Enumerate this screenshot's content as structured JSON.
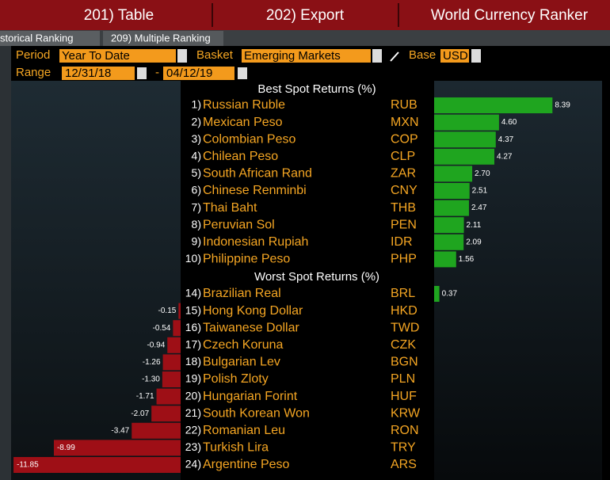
{
  "tabs": [
    "201) Table",
    "202) Export",
    "World Currency Ranker"
  ],
  "subtabs": [
    "storical Ranking",
    "209) Multiple Ranking"
  ],
  "controls": {
    "period_label": "Period",
    "period": "Year To Date",
    "basket_label": "Basket",
    "basket": "Emerging Markets",
    "base_label": "Base",
    "base": "USD",
    "range_label": "Range",
    "range_start": "12/31/18",
    "range_sep": "-",
    "range_end": "04/12/19"
  },
  "best": {
    "title": "Best Spot Returns (%)",
    "rows": [
      {
        "rank": "1)",
        "name": "Russian Ruble",
        "code": "RUB",
        "value": 8.39
      },
      {
        "rank": "2)",
        "name": "Mexican Peso",
        "code": "MXN",
        "value": 4.6,
        "label": "4.60"
      },
      {
        "rank": "3)",
        "name": "Colombian Peso",
        "code": "COP",
        "value": 4.37
      },
      {
        "rank": "4)",
        "name": "Chilean Peso",
        "code": "CLP",
        "value": 4.27
      },
      {
        "rank": "5)",
        "name": "South African Rand",
        "code": "ZAR",
        "value": 2.7,
        "label": "2.70"
      },
      {
        "rank": "6)",
        "name": "Chinese Renminbi",
        "code": "CNY",
        "value": 2.51
      },
      {
        "rank": "7)",
        "name": "Thai Baht",
        "code": "THB",
        "value": 2.47
      },
      {
        "rank": "8)",
        "name": "Peruvian Sol",
        "code": "PEN",
        "value": 2.11
      },
      {
        "rank": "9)",
        "name": "Indonesian Rupiah",
        "code": "IDR",
        "value": 2.09
      },
      {
        "rank": "10)",
        "name": "Philippine Peso",
        "code": "PHP",
        "value": 1.56
      }
    ]
  },
  "worst": {
    "title": "Worst Spot Returns (%)",
    "rows": [
      {
        "rank": "14)",
        "name": "Brazilian Real",
        "code": "BRL",
        "value": 0.37
      },
      {
        "rank": "15)",
        "name": "Hong Kong Dollar",
        "code": "HKD",
        "value": -0.15
      },
      {
        "rank": "16)",
        "name": "Taiwanese Dollar",
        "code": "TWD",
        "value": -0.54
      },
      {
        "rank": "17)",
        "name": "Czech Koruna",
        "code": "CZK",
        "value": -0.94
      },
      {
        "rank": "18)",
        "name": "Bulgarian Lev",
        "code": "BGN",
        "value": -1.26
      },
      {
        "rank": "19)",
        "name": "Polish Zloty",
        "code": "PLN",
        "value": -1.3,
        "label": "-1.30"
      },
      {
        "rank": "20)",
        "name": "Hungarian Forint",
        "code": "HUF",
        "value": -1.71
      },
      {
        "rank": "21)",
        "name": "South Korean Won",
        "code": "KRW",
        "value": -2.07
      },
      {
        "rank": "22)",
        "name": "Romanian Leu",
        "code": "RON",
        "value": -3.47
      },
      {
        "rank": "23)",
        "name": "Turkish Lira",
        "code": "TRY",
        "value": -8.99
      },
      {
        "rank": "24)",
        "name": "Argentine Peso",
        "code": "ARS",
        "value": -11.85
      }
    ]
  }
}
